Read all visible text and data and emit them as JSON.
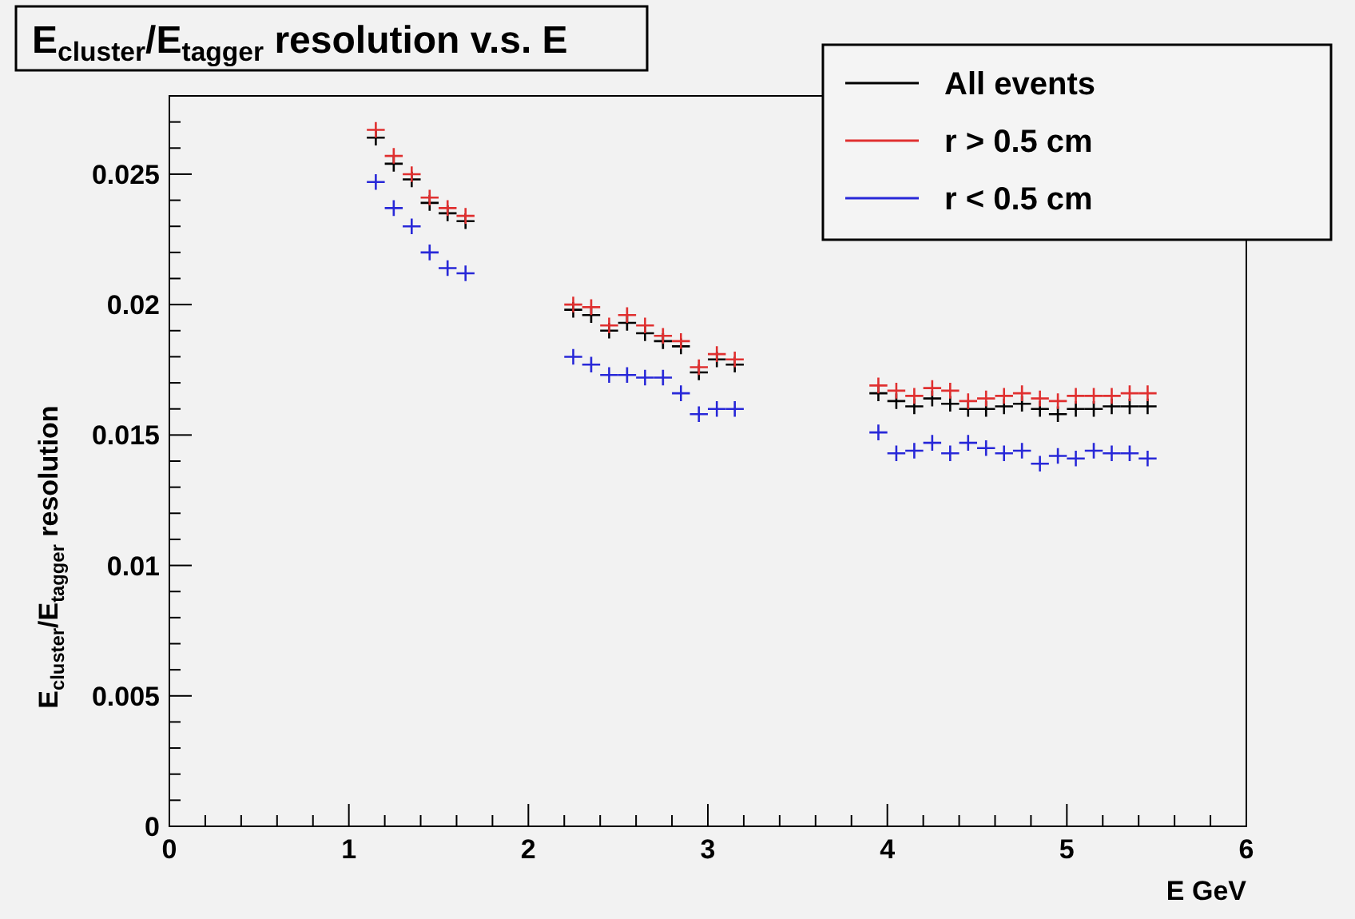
{
  "chart_data": {
    "type": "scatter",
    "title": "E$_{cluster}$/E$_{tagger}$ resolution v.s. E",
    "xlabel": "E GeV",
    "ylabel": "E$_{cluster}$/E$_{tagger}$ resolution",
    "x": [
      1.15,
      1.25,
      1.35,
      1.45,
      1.55,
      1.65,
      2.25,
      2.35,
      2.45,
      2.55,
      2.65,
      2.75,
      2.85,
      2.95,
      3.05,
      3.15,
      3.95,
      4.05,
      4.15,
      4.25,
      4.35,
      4.45,
      4.55,
      4.65,
      4.75,
      4.85,
      4.95,
      5.05,
      5.15,
      5.25,
      5.35,
      5.45
    ],
    "series": [
      {
        "name": "All events",
        "color": "#000000",
        "values": [
          0.0264,
          0.0254,
          0.0248,
          0.0239,
          0.0235,
          0.0232,
          0.0198,
          0.0196,
          0.019,
          0.0193,
          0.0189,
          0.0186,
          0.0184,
          0.0174,
          0.0179,
          0.0177,
          0.0166,
          0.0163,
          0.0161,
          0.0164,
          0.0162,
          0.016,
          0.016,
          0.0161,
          0.0162,
          0.016,
          0.0158,
          0.016,
          0.016,
          0.0161,
          0.0161,
          0.0161
        ],
        "errors": [
          0.0003,
          0.0003,
          0.0003,
          0.0003,
          0.0003,
          0.0003,
          0.0003,
          0.0003,
          0.0003,
          0.0003,
          0.0003,
          0.0003,
          0.0003,
          0.0003,
          0.0003,
          0.0003,
          0.0003,
          0.0003,
          0.0003,
          0.0003,
          0.0003,
          0.0003,
          0.0003,
          0.0003,
          0.0003,
          0.0003,
          0.0003,
          0.0003,
          0.0003,
          0.0003,
          0.0003,
          0.0003
        ],
        "xerrors": [
          0.05,
          0.05,
          0.05,
          0.05,
          0.05,
          0.05,
          0.05,
          0.05,
          0.05,
          0.05,
          0.05,
          0.05,
          0.05,
          0.05,
          0.05,
          0.05,
          0.05,
          0.05,
          0.05,
          0.05,
          0.05,
          0.05,
          0.05,
          0.05,
          0.05,
          0.05,
          0.05,
          0.05,
          0.05,
          0.05,
          0.05,
          0.05
        ]
      },
      {
        "name": "r > 0.5 cm",
        "color": "#e03030",
        "values": [
          0.0267,
          0.0257,
          0.025,
          0.0241,
          0.0237,
          0.0234,
          0.02,
          0.0199,
          0.0192,
          0.0196,
          0.0192,
          0.0188,
          0.0186,
          0.0176,
          0.0181,
          0.0179,
          0.0169,
          0.0167,
          0.0165,
          0.0168,
          0.0167,
          0.0163,
          0.0164,
          0.0165,
          0.0166,
          0.0164,
          0.0163,
          0.0165,
          0.0165,
          0.0165,
          0.0166,
          0.0166
        ],
        "errors": [
          0.0003,
          0.0003,
          0.0003,
          0.0003,
          0.0003,
          0.0003,
          0.0003,
          0.0003,
          0.0003,
          0.0003,
          0.0003,
          0.0003,
          0.0003,
          0.0003,
          0.0003,
          0.0003,
          0.0003,
          0.0003,
          0.0003,
          0.0003,
          0.0003,
          0.0003,
          0.0003,
          0.0003,
          0.0003,
          0.0003,
          0.0003,
          0.0003,
          0.0003,
          0.0003,
          0.0003,
          0.0003
        ],
        "xerrors": [
          0.05,
          0.05,
          0.05,
          0.05,
          0.05,
          0.05,
          0.05,
          0.05,
          0.05,
          0.05,
          0.05,
          0.05,
          0.05,
          0.05,
          0.05,
          0.05,
          0.05,
          0.05,
          0.05,
          0.05,
          0.05,
          0.05,
          0.05,
          0.05,
          0.05,
          0.05,
          0.05,
          0.05,
          0.05,
          0.05,
          0.05,
          0.05
        ]
      },
      {
        "name": "r < 0.5 cm",
        "color": "#2828d8",
        "values": [
          0.0247,
          0.0237,
          0.023,
          0.022,
          0.0214,
          0.0212,
          0.018,
          0.0177,
          0.0173,
          0.0173,
          0.0172,
          0.0172,
          0.0166,
          0.0158,
          0.016,
          0.016,
          0.0151,
          0.0143,
          0.0144,
          0.0147,
          0.0143,
          0.0147,
          0.0145,
          0.0143,
          0.0144,
          0.0139,
          0.0142,
          0.0141,
          0.0144,
          0.0143,
          0.0143,
          0.0141
        ],
        "errors": [
          0.0003,
          0.0003,
          0.0003,
          0.0003,
          0.0003,
          0.0003,
          0.0003,
          0.0003,
          0.0003,
          0.0003,
          0.0003,
          0.0003,
          0.0003,
          0.0003,
          0.0003,
          0.0003,
          0.0003,
          0.0003,
          0.0003,
          0.0003,
          0.0003,
          0.0003,
          0.0003,
          0.0003,
          0.0003,
          0.0003,
          0.0003,
          0.0003,
          0.0003,
          0.0003,
          0.0003,
          0.0003
        ],
        "xerrors": [
          0.05,
          0.05,
          0.05,
          0.05,
          0.05,
          0.05,
          0.05,
          0.05,
          0.05,
          0.05,
          0.05,
          0.05,
          0.05,
          0.05,
          0.05,
          0.05,
          0.05,
          0.05,
          0.05,
          0.05,
          0.05,
          0.05,
          0.05,
          0.05,
          0.05,
          0.05,
          0.05,
          0.05,
          0.05,
          0.05,
          0.05,
          0.05
        ]
      }
    ],
    "xlim": [
      0,
      6
    ],
    "ylim": [
      0,
      0.028
    ],
    "xticks": [
      0,
      {
        "value": 0.2,
        "label": null
      },
      {
        "value": 0.4,
        "label": null
      },
      {
        "value": 0.6,
        "label": null
      },
      {
        "value": 0.8,
        "label": null
      },
      1,
      {
        "value": 1.2,
        "label": null
      },
      {
        "value": 1.4,
        "label": null
      },
      {
        "value": 1.6,
        "label": null
      },
      {
        "value": 1.8,
        "label": null
      },
      2,
      {
        "value": 2.2,
        "label": null
      },
      {
        "value": 2.4,
        "label": null
      },
      {
        "value": 2.6,
        "label": null
      },
      {
        "value": 2.8,
        "label": null
      },
      3,
      {
        "value": 3.2,
        "label": null
      },
      {
        "value": 3.4,
        "label": null
      },
      {
        "value": 3.6,
        "label": null
      },
      {
        "value": 3.8,
        "label": null
      },
      4,
      {
        "value": 4.2,
        "label": null
      },
      {
        "value": 4.4,
        "label": null
      },
      {
        "value": 4.6,
        "label": null
      },
      {
        "value": 4.8,
        "label": null
      },
      5,
      {
        "value": 5.2,
        "label": null
      },
      {
        "value": 5.4,
        "label": null
      },
      {
        "value": 5.6,
        "label": null
      },
      {
        "value": 5.8,
        "label": null
      },
      6
    ],
    "yticks": [
      0,
      {
        "value": 0.001,
        "label": null
      },
      {
        "value": 0.002,
        "label": null
      },
      {
        "value": 0.003,
        "label": null
      },
      {
        "value": 0.004,
        "label": null
      },
      0.005,
      {
        "value": 0.006,
        "label": null
      },
      {
        "value": 0.007,
        "label": null
      },
      {
        "value": 0.008,
        "label": null
      },
      {
        "value": 0.009,
        "label": null
      },
      0.01,
      {
        "value": 0.011,
        "label": null
      },
      {
        "value": 0.012,
        "label": null
      },
      {
        "value": 0.013,
        "label": null
      },
      {
        "value": 0.014,
        "label": null
      },
      0.015,
      {
        "value": 0.016,
        "label": null
      },
      {
        "value": 0.017,
        "label": null
      },
      {
        "value": 0.018,
        "label": null
      },
      {
        "value": 0.019,
        "label": null
      },
      0.02,
      {
        "value": 0.021,
        "label": null
      },
      {
        "value": 0.022,
        "label": null
      },
      {
        "value": 0.023,
        "label": null
      },
      {
        "value": 0.024,
        "label": null
      },
      0.025,
      {
        "value": 0.026,
        "label": null
      },
      {
        "value": 0.027,
        "label": null
      }
    ],
    "legend": "top right",
    "grid": false
  }
}
